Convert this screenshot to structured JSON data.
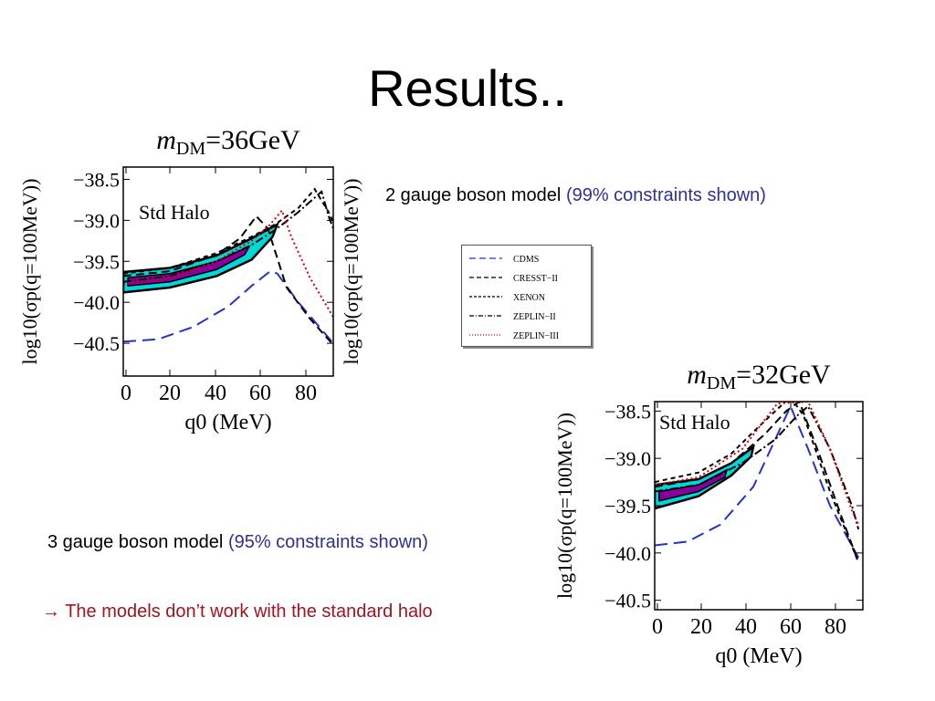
{
  "slide": {
    "title": "Results..",
    "note_2gauge_main": "2 gauge boson model ",
    "note_2gauge_paren": "(99% constraints shown)",
    "note_3gauge_main": "3 gauge boson model ",
    "note_3gauge_paren": "(95% constraints shown)",
    "conclusion_arrow": "→",
    "conclusion_text": " The models don’t work with the standard halo",
    "colors": {
      "title": "#000000",
      "accent_blue": "#2e3092",
      "accent_red": "#a3141c",
      "contour_outer": "#00d8d8",
      "contour_inner": "#880099"
    }
  },
  "chart_data": [
    {
      "type": "line",
      "title": "mDM=36GeV",
      "title_m": "m",
      "title_sub": "DM",
      "title_rest": "=36GeV",
      "annotation": "Std Halo",
      "xlabel": "q0 (MeV)",
      "ylabel": "log10(σp(q=100MeV))",
      "xlim": [
        0,
        90
      ],
      "ylim": [
        -40.9,
        -38.35
      ],
      "xticks": [
        "0",
        "20",
        "40",
        "60",
        "80"
      ],
      "yticks": [
        "−38.5",
        "−39.0",
        "−39.5",
        "−40.0",
        "−40.5"
      ],
      "ytick_values": [
        -38.5,
        -39.0,
        -39.5,
        -40.0,
        -40.5
      ],
      "series": [
        {
          "name": "CDMS",
          "color": "#2233cc",
          "dash": "14,7",
          "points": [
            [
              0,
              -40.48
            ],
            [
              15,
              -40.45
            ],
            [
              30,
              -40.3
            ],
            [
              45,
              -40.05
            ],
            [
              55,
              -39.8
            ],
            [
              63,
              -39.62
            ],
            [
              66,
              -39.65
            ],
            [
              75,
              -40.0
            ],
            [
              90,
              -40.5
            ]
          ]
        },
        {
          "name": "CRESST−II",
          "color": "#000000",
          "dash": "9,5",
          "points": [
            [
              0,
              -39.68
            ],
            [
              20,
              -39.62
            ],
            [
              40,
              -39.42
            ],
            [
              50,
              -39.22
            ],
            [
              57,
              -38.95
            ],
            [
              62,
              -39.1
            ],
            [
              70,
              -39.82
            ],
            [
              80,
              -40.2
            ],
            [
              90,
              -40.52
            ]
          ]
        },
        {
          "name": "XENON",
          "color": "#000000",
          "dash": "5,4",
          "points": [
            [
              0,
              -39.65
            ],
            [
              20,
              -39.58
            ],
            [
              40,
              -39.4
            ],
            [
              55,
              -39.2
            ],
            [
              65,
              -39.05
            ],
            [
              75,
              -38.85
            ],
            [
              82,
              -38.62
            ],
            [
              88,
              -38.9
            ],
            [
              90,
              -39.02
            ]
          ]
        },
        {
          "name": "ZEPLIN−II",
          "color": "#000000",
          "dash": "9,3,2,3",
          "points": [
            [
              0,
              -39.75
            ],
            [
              20,
              -39.68
            ],
            [
              40,
              -39.5
            ],
            [
              55,
              -39.3
            ],
            [
              65,
              -39.12
            ],
            [
              75,
              -38.9
            ],
            [
              85,
              -38.65
            ],
            [
              88,
              -38.95
            ],
            [
              90,
              -39.1
            ]
          ]
        },
        {
          "name": "ZEPLIN−III",
          "color": "#dd0000",
          "dash": "2,3",
          "points": [
            [
              0,
              -39.78
            ],
            [
              20,
              -39.7
            ],
            [
              40,
              -39.5
            ],
            [
              55,
              -39.25
            ],
            [
              63,
              -39.05
            ],
            [
              68,
              -38.88
            ],
            [
              72,
              -39.2
            ],
            [
              80,
              -39.7
            ],
            [
              90,
              -40.18
            ]
          ]
        }
      ],
      "contour_outer": [
        [
          0,
          -39.63
        ],
        [
          20,
          -39.58
        ],
        [
          40,
          -39.43
        ],
        [
          55,
          -39.22
        ],
        [
          66,
          -39.05
        ],
        [
          64,
          -39.2
        ],
        [
          55,
          -39.48
        ],
        [
          40,
          -39.68
        ],
        [
          20,
          -39.82
        ],
        [
          0,
          -39.88
        ]
      ],
      "contour_inner": [
        [
          2,
          -39.7
        ],
        [
          20,
          -39.65
        ],
        [
          40,
          -39.5
        ],
        [
          54,
          -39.32
        ],
        [
          52,
          -39.42
        ],
        [
          40,
          -39.6
        ],
        [
          20,
          -39.75
        ],
        [
          2,
          -39.8
        ]
      ]
    },
    {
      "type": "line",
      "title": "mDM=32GeV",
      "title_m": "m",
      "title_sub": "DM",
      "title_rest": "=32GeV",
      "annotation": "Std Halo",
      "xlabel": "q0 (MeV)",
      "ylabel": "log10(σp(q=100MeV))",
      "xlim": [
        0,
        95
      ],
      "ylim": [
        -40.6,
        -38.4
      ],
      "xticks": [
        "0",
        "20",
        "40",
        "60",
        "80"
      ],
      "yticks": [
        "−38.5",
        "−39.0",
        "−39.5",
        "−40.0",
        "−40.5"
      ],
      "ytick_values": [
        -38.5,
        -39.0,
        -39.5,
        -40.0,
        -40.5
      ],
      "series": [
        {
          "name": "CDMS",
          "color": "#2233cc",
          "dash": "14,7",
          "points": [
            [
              0,
              -39.92
            ],
            [
              15,
              -39.88
            ],
            [
              30,
              -39.7
            ],
            [
              45,
              -39.3
            ],
            [
              55,
              -38.8
            ],
            [
              62,
              -38.45
            ],
            [
              70,
              -38.9
            ],
            [
              80,
              -39.5
            ],
            [
              93,
              -40.05
            ]
          ]
        },
        {
          "name": "CRESST−II",
          "color": "#000000",
          "dash": "9,5",
          "points": [
            [
              0,
              -39.3
            ],
            [
              20,
              -39.22
            ],
            [
              35,
              -39.05
            ],
            [
              50,
              -38.75
            ],
            [
              60,
              -38.5
            ],
            [
              66,
              -38.4
            ],
            [
              75,
              -38.95
            ],
            [
              85,
              -39.6
            ],
            [
              93,
              -40.1
            ]
          ]
        },
        {
          "name": "XENON",
          "color": "#000000",
          "dash": "5,4",
          "points": [
            [
              0,
              -39.25
            ],
            [
              20,
              -39.15
            ],
            [
              35,
              -38.95
            ],
            [
              45,
              -38.72
            ],
            [
              55,
              -38.5
            ],
            [
              62,
              -38.35
            ],
            [
              68,
              -38.55
            ],
            [
              80,
              -39.35
            ],
            [
              93,
              -40.1
            ]
          ]
        },
        {
          "name": "ZEPLIN−II",
          "color": "#000000",
          "dash": "9,3,2,3",
          "points": [
            [
              0,
              -39.35
            ],
            [
              20,
              -39.28
            ],
            [
              40,
              -39.05
            ],
            [
              55,
              -38.8
            ],
            [
              65,
              -38.55
            ],
            [
              70,
              -38.45
            ],
            [
              80,
              -38.9
            ],
            [
              90,
              -39.5
            ],
            [
              93,
              -39.75
            ]
          ]
        },
        {
          "name": "ZEPLIN−III",
          "color": "#dd0000",
          "dash": "2,3",
          "points": [
            [
              0,
              -39.28
            ],
            [
              20,
              -39.2
            ],
            [
              40,
              -38.9
            ],
            [
              50,
              -38.6
            ],
            [
              56,
              -38.42
            ],
            [
              70,
              -38.4
            ],
            [
              80,
              -38.9
            ],
            [
              90,
              -39.55
            ],
            [
              93,
              -39.7
            ]
          ]
        }
      ],
      "contour_outer": [
        [
          0,
          -39.28
        ],
        [
          20,
          -39.22
        ],
        [
          35,
          -39.05
        ],
        [
          45,
          -38.88
        ],
        [
          44,
          -38.98
        ],
        [
          35,
          -39.18
        ],
        [
          20,
          -39.4
        ],
        [
          0,
          -39.53
        ]
      ],
      "contour_inner": [
        [
          2,
          -39.35
        ],
        [
          20,
          -39.28
        ],
        [
          33,
          -39.12
        ],
        [
          32,
          -39.2
        ],
        [
          20,
          -39.35
        ],
        [
          2,
          -39.45
        ]
      ]
    }
  ],
  "legend": {
    "entries": [
      {
        "label": "CDMS",
        "color": "#2233cc",
        "dash": "7,4"
      },
      {
        "label": "CRESST−II",
        "color": "#000000",
        "dash": "5,3"
      },
      {
        "label": "XENON",
        "color": "#000000",
        "dash": "3,2"
      },
      {
        "label": "ZEPLIN−II",
        "color": "#000000",
        "dash": "5,2,1,2"
      },
      {
        "label": "ZEPLIN−III",
        "color": "#dd0000",
        "dash": "1,2"
      }
    ]
  }
}
